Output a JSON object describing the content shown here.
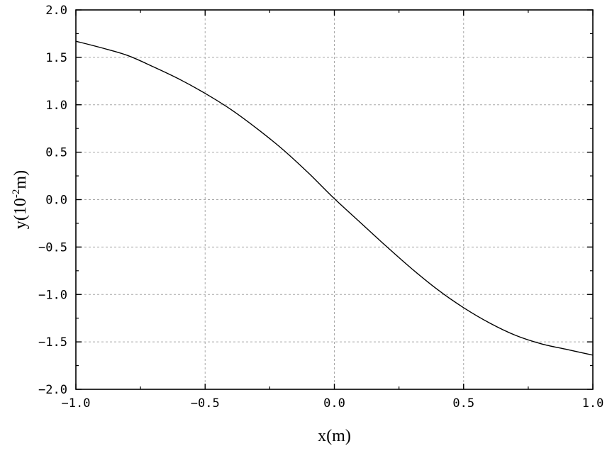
{
  "chart_data": {
    "type": "line",
    "title": "",
    "xlabel": "x(m)",
    "ylabel": {
      "prefix": "y(10",
      "superscript": "-2",
      "suffix": "m)"
    },
    "xlim": [
      -1.0,
      1.0
    ],
    "ylim": [
      -2.0,
      2.0
    ],
    "x_ticks": [
      -1.0,
      -0.5,
      0.0,
      0.5,
      1.0
    ],
    "x_tick_labels": [
      "−1.0",
      "−0.5",
      "0.0",
      "0.5",
      "1.0"
    ],
    "y_ticks": [
      -2.0,
      -1.5,
      -1.0,
      -0.5,
      0.0,
      0.5,
      1.0,
      1.5,
      2.0
    ],
    "y_tick_labels": [
      "−2.0",
      "−1.5",
      "−1.0",
      "−0.5",
      "0.0",
      "0.5",
      "1.0",
      "1.5",
      "2.0"
    ],
    "grid": true,
    "legend": "none",
    "series": [
      {
        "color": "#000000",
        "x": [
          -1.0,
          -0.9,
          -0.8,
          -0.7,
          -0.6,
          -0.5,
          -0.4,
          -0.3,
          -0.2,
          -0.1,
          0.0,
          0.1,
          0.2,
          0.3,
          0.4,
          0.5,
          0.6,
          0.7,
          0.8,
          0.9,
          1.0
        ],
        "y": [
          1.67,
          1.6,
          1.52,
          1.4,
          1.27,
          1.12,
          0.95,
          0.75,
          0.53,
          0.28,
          0.01,
          -0.24,
          -0.49,
          -0.73,
          -0.95,
          -1.14,
          -1.3,
          -1.43,
          -1.52,
          -1.58,
          -1.64
        ]
      }
    ]
  }
}
